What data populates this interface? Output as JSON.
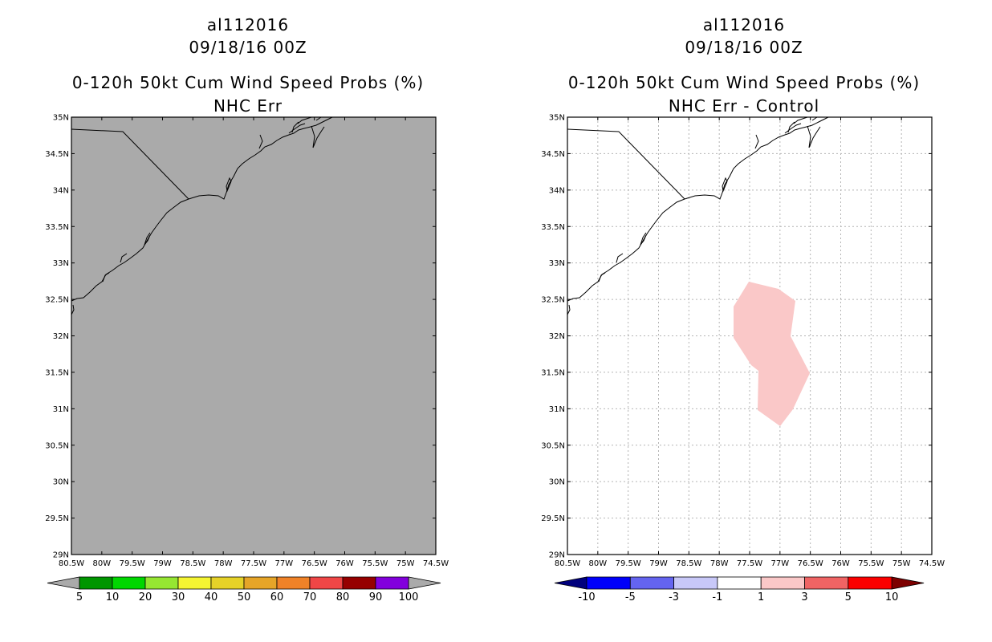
{
  "left": {
    "title_line1": "al112016",
    "title_line2": "09/18/16 00Z",
    "title_line3": "0-120h 50kt Cum Wind Speed Probs (%)",
    "title_line4": "NHC Err",
    "map_fill_color": "#aaaaaa",
    "colorbar": {
      "colors": [
        "#009600",
        "#00d700",
        "#96e632",
        "#f5f532",
        "#e6d228",
        "#e6a528",
        "#f08228",
        "#f04646",
        "#960000",
        "#8200dc"
      ],
      "labels": [
        "5",
        "10",
        "20",
        "30",
        "40",
        "50",
        "60",
        "70",
        "80",
        "90",
        "100"
      ],
      "arrow_left_color": "#aaaaaa",
      "arrow_right_color": "#aaaaaa"
    }
  },
  "right": {
    "title_line1": "al112016",
    "title_line2": "09/18/16 00Z",
    "title_line3": "0-120h 50kt Cum Wind Speed Probs (%)",
    "title_line4": "NHC Err - Control",
    "map_fill_color": "#ffffff",
    "anomaly_color": "#fac8c8",
    "colorbar": {
      "colors": [
        "#0000fa",
        "#6464f0",
        "#c8c8f8",
        "#ffffff",
        "#fac8c8",
        "#f06464",
        "#fa0000"
      ],
      "labels": [
        "-10",
        "-5",
        "-3",
        "-1",
        "1",
        "3",
        "5",
        "10"
      ],
      "arrow_left_color": "#00007d",
      "arrow_right_color": "#7d0000"
    }
  },
  "axes": {
    "lat_labels": [
      "35N",
      "34.5N",
      "34N",
      "33.5N",
      "33N",
      "32.5N",
      "32N",
      "31.5N",
      "31N",
      "30.5N",
      "30N",
      "29.5N",
      "29N"
    ],
    "lon_labels": [
      "80.5W",
      "80W",
      "79.5W",
      "79W",
      "78.5W",
      "78W",
      "77.5W",
      "77W",
      "76.5W",
      "76W",
      "75.5W",
      "75W",
      "74.5W"
    ],
    "lat_range": [
      29,
      35
    ],
    "lon_range": [
      -80.5,
      -74.5
    ]
  }
}
